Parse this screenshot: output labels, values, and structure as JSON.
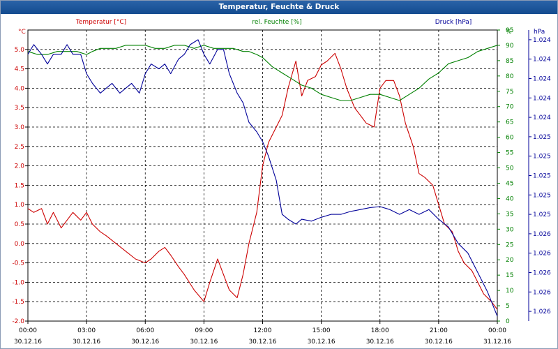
{
  "window": {
    "title": "Temperatur, Feuchte & Druck"
  },
  "chart_data": {
    "type": "line",
    "title": "Temperatur, Feuchte & Druck",
    "grid": true,
    "colors": {
      "temperature": "#cc0000",
      "humidity": "#008000",
      "pressure": "#000099"
    },
    "x_labels": [
      {
        "time": "00:00",
        "date": "30.12.16"
      },
      {
        "time": "03:00",
        "date": "30.12.16"
      },
      {
        "time": "06:00",
        "date": "30.12.16"
      },
      {
        "time": "09:00",
        "date": "30.12.16"
      },
      {
        "time": "12:00",
        "date": "30.12.16"
      },
      {
        "time": "15:00",
        "date": "30.12.16"
      },
      {
        "time": "18:00",
        "date": "30.12.16"
      },
      {
        "time": "21:00",
        "date": "30.12.16"
      },
      {
        "time": "00:00",
        "date": "31.12.16"
      }
    ],
    "x_range_hours": [
      0,
      24
    ],
    "axes": {
      "left": {
        "unit": "°C",
        "label": "Temperatur [°C]",
        "range": [
          -2.0,
          5.5
        ],
        "ticks": [
          "-2.0",
          "-1.5",
          "-1.0",
          "-0.5",
          "0.0",
          "0.5",
          "1.0",
          "1.5",
          "2.0",
          "2.5",
          "3.0",
          "3.5",
          "4.0",
          "4.5",
          "5.0"
        ]
      },
      "middle": {
        "unit": "%",
        "label": "rel. Feuchte [%]",
        "range": [
          0,
          95
        ],
        "ticks": [
          "0",
          "5",
          "10",
          "15",
          "20",
          "25",
          "30",
          "35",
          "40",
          "45",
          "50",
          "55",
          "60",
          "65",
          "70",
          "75",
          "80",
          "85",
          "90",
          "95"
        ]
      },
      "right": {
        "unit": "hPa",
        "label": "Druck [hPa]",
        "range": [
          1023.45,
          1026.45
        ],
        "ticks": [
          "1.026",
          "1.026",
          "1.026",
          "1.026",
          "1.026",
          "1.025",
          "1.025",
          "1.025",
          "1.025",
          "1.025",
          "1.024",
          "1.024",
          "1.024",
          "1.024",
          "1.024"
        ]
      }
    },
    "series": [
      {
        "name": "Temperatur [°C]",
        "axis": "left",
        "x_hours": [
          0,
          0.3,
          0.7,
          1,
          1.3,
          1.7,
          2,
          2.3,
          2.7,
          3,
          3.3,
          3.7,
          4,
          4.5,
          5,
          5.5,
          6,
          6.3,
          6.7,
          7,
          7.3,
          7.7,
          8,
          8.5,
          9,
          9.3,
          9.7,
          10,
          10.3,
          10.7,
          11,
          11.3,
          11.7,
          12,
          12.3,
          12.7,
          13,
          13.3,
          13.7,
          14,
          14.3,
          14.7,
          15,
          15.3,
          15.7,
          16,
          16.3,
          16.7,
          17,
          17.3,
          17.7,
          18,
          18.3,
          18.7,
          19,
          19.3,
          19.7,
          20,
          20.3,
          20.7,
          21,
          21.3,
          21.7,
          22,
          22.3,
          22.7,
          23,
          23.3,
          23.7,
          24
        ],
        "values": [
          0.9,
          0.8,
          0.9,
          0.5,
          0.8,
          0.4,
          0.6,
          0.8,
          0.6,
          0.8,
          0.5,
          0.3,
          0.2,
          0.0,
          -0.2,
          -0.4,
          -0.5,
          -0.4,
          -0.2,
          -0.1,
          -0.3,
          -0.6,
          -0.8,
          -1.2,
          -1.5,
          -1.0,
          -0.4,
          -0.8,
          -1.2,
          -1.4,
          -0.8,
          0.0,
          0.8,
          2.0,
          2.6,
          3.0,
          3.3,
          4.0,
          4.7,
          3.8,
          4.2,
          4.3,
          4.6,
          4.7,
          4.9,
          4.5,
          4.0,
          3.5,
          3.3,
          3.1,
          3.0,
          4.0,
          4.2,
          4.2,
          3.8,
          3.1,
          2.5,
          1.8,
          1.7,
          1.5,
          1.0,
          0.5,
          0.3,
          -0.2,
          -0.5,
          -0.7,
          -1.0,
          -1.3,
          -1.5,
          -1.7
        ]
      },
      {
        "name": "rel. Feuchte [%]",
        "axis": "middle",
        "x_hours": [
          0,
          0.5,
          1,
          1.5,
          2,
          2.5,
          3,
          3.3,
          3.7,
          4,
          4.5,
          5,
          5.5,
          6,
          6.5,
          7,
          7.5,
          8,
          8.5,
          9,
          9.5,
          10,
          10.5,
          11,
          11.3,
          11.7,
          12,
          12.5,
          13,
          13.5,
          14,
          14.5,
          15,
          15.5,
          16,
          16.5,
          17,
          17.5,
          18,
          18.5,
          19,
          19.5,
          20,
          20.5,
          21,
          21.5,
          22,
          22.5,
          23,
          23.5,
          24
        ],
        "values": [
          88,
          87,
          87,
          88,
          88,
          88,
          87,
          88,
          89,
          89,
          89,
          90,
          90,
          90,
          89,
          89,
          90,
          90,
          89,
          90,
          89,
          89,
          89,
          88,
          88,
          87,
          86,
          83,
          81,
          79,
          77,
          76,
          74,
          73,
          72,
          72,
          73,
          74,
          74,
          73,
          72,
          74,
          76,
          79,
          81,
          84,
          85,
          86,
          88,
          89,
          90
        ]
      },
      {
        "name": "Druck [hPa]",
        "axis": "right",
        "x_hours": [
          0,
          0.3,
          0.7,
          1,
          1.3,
          1.7,
          2,
          2.3,
          2.7,
          3,
          3.3,
          3.7,
          4,
          4.3,
          4.7,
          5,
          5.3,
          5.7,
          6,
          6.3,
          6.7,
          7,
          7.3,
          7.7,
          8,
          8.3,
          8.7,
          9,
          9.3,
          9.7,
          10,
          10.3,
          10.7,
          11,
          11.3,
          11.7,
          12,
          12.3,
          12.7,
          13,
          13.3,
          13.7,
          14,
          14.5,
          15,
          15.5,
          16,
          16.5,
          17,
          17.5,
          18,
          18.5,
          19,
          19.5,
          20,
          20.5,
          21,
          21.5,
          22,
          22.5,
          23,
          23.5,
          24
        ],
        "values": [
          1026.2,
          1026.3,
          1026.2,
          1026.1,
          1026.2,
          1026.2,
          1026.3,
          1026.2,
          1026.2,
          1026.0,
          1025.9,
          1025.8,
          1025.85,
          1025.9,
          1025.8,
          1025.85,
          1025.9,
          1025.8,
          1026.0,
          1026.1,
          1026.05,
          1026.1,
          1026.0,
          1026.15,
          1026.2,
          1026.3,
          1026.35,
          1026.2,
          1026.1,
          1026.25,
          1026.25,
          1026.0,
          1025.8,
          1025.7,
          1025.5,
          1025.4,
          1025.3,
          1025.15,
          1024.9,
          1024.55,
          1024.5,
          1024.45,
          1024.5,
          1024.48,
          1024.52,
          1024.55,
          1024.55,
          1024.58,
          1024.6,
          1024.62,
          1024.63,
          1024.6,
          1024.55,
          1024.6,
          1024.55,
          1024.6,
          1024.5,
          1024.42,
          1024.25,
          1024.15,
          1023.95,
          1023.75,
          1023.5
        ]
      }
    ]
  }
}
